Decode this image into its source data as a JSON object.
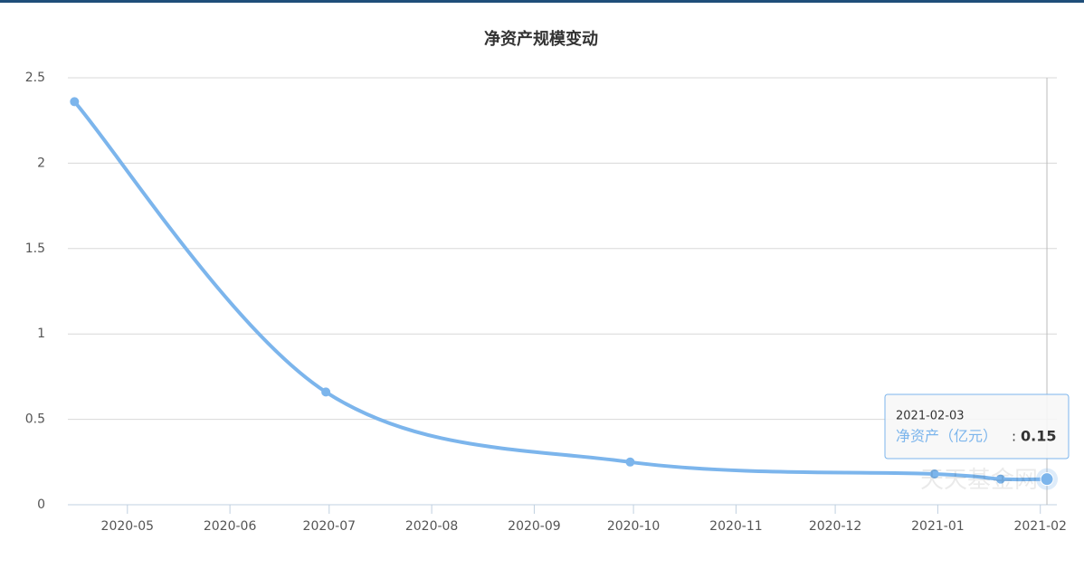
{
  "chart_data": {
    "type": "line",
    "title": "净资产规模变动",
    "x": [
      "2020-04-15",
      "2020-06-30",
      "2020-09-30",
      "2020-12-31",
      "2021-01-20",
      "2021-02-03"
    ],
    "series": [
      {
        "name": "净资产（亿元）",
        "color": "#7cb5ec",
        "values": [
          2.36,
          0.66,
          0.25,
          0.18,
          0.15,
          0.15
        ]
      }
    ],
    "xlim": [
      "2020-04-13",
      "2021-02-06"
    ],
    "xticks": [
      {
        "value": "2020-05-01",
        "label": "2020-05"
      },
      {
        "value": "2020-06-01",
        "label": "2020-06"
      },
      {
        "value": "2020-07-01",
        "label": "2020-07"
      },
      {
        "value": "2020-08-01",
        "label": "2020-08"
      },
      {
        "value": "2020-09-01",
        "label": "2020-09"
      },
      {
        "value": "2020-10-01",
        "label": "2020-10"
      },
      {
        "value": "2020-11-01",
        "label": "2020-11"
      },
      {
        "value": "2020-12-01",
        "label": "2020-12"
      },
      {
        "value": "2021-01-01",
        "label": "2021-01"
      },
      {
        "value": "2021-02-01",
        "label": "2021-02"
      }
    ],
    "ylim": [
      0,
      2.5
    ],
    "yticks": [
      0,
      0.5,
      1,
      1.5,
      2,
      2.5
    ],
    "grid": true,
    "tooltip": {
      "date": "2021-02-03",
      "series": "净资产（亿元）",
      "separator": ":",
      "value": "0.15"
    },
    "watermark": "天天基金网"
  }
}
